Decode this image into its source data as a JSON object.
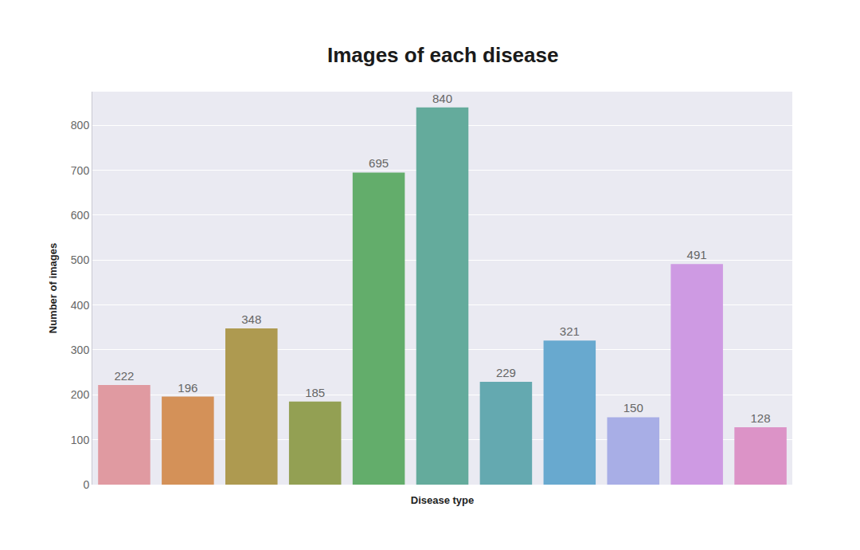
{
  "chart_data": {
    "type": "bar",
    "title": "Images of each disease",
    "x_label": "Disease type",
    "y_label": "Number of images",
    "categories": [
      null,
      null,
      null,
      null,
      null,
      null,
      null,
      null,
      null,
      null,
      null
    ],
    "values": [
      222,
      196,
      348,
      185,
      695,
      840,
      229,
      321,
      150,
      491,
      128
    ],
    "colors": [
      "#e09aa1",
      "#d49158",
      "#ae9a50",
      "#93a053",
      "#63ad6b",
      "#64ab9c",
      "#64a9b0",
      "#68a9cf",
      "#a8aee6",
      "#ce9ae3",
      "#dc93c7"
    ],
    "ylim": [
      0,
      875
    ],
    "yticks": [
      0,
      100,
      200,
      300,
      400,
      500,
      600,
      700,
      800
    ],
    "grid": true,
    "data_labels": true,
    "tick_labels": "y"
  }
}
